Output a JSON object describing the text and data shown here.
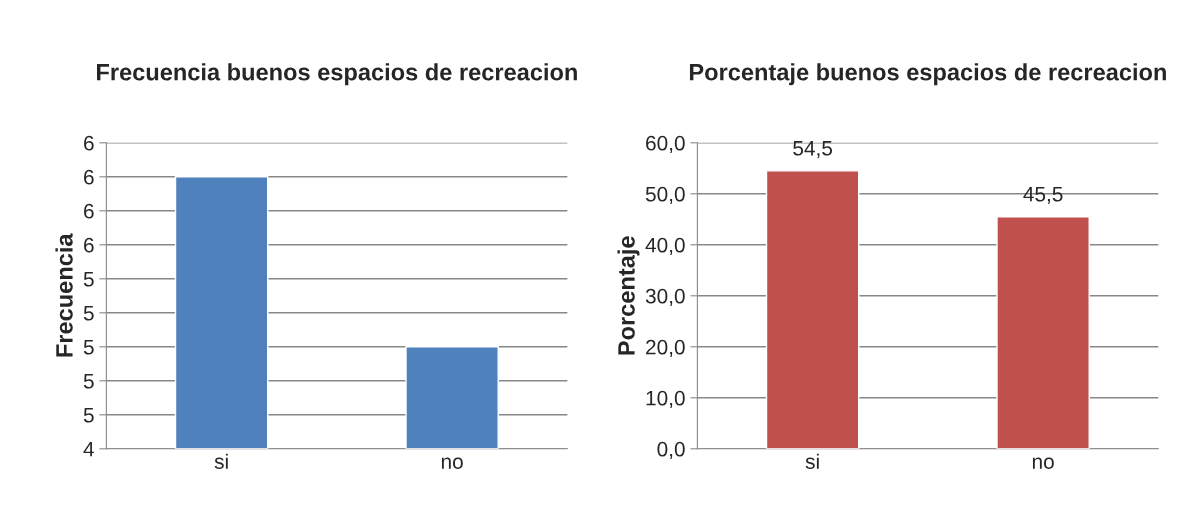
{
  "chart_data": [
    {
      "type": "bar",
      "title": "Frecuencia buenos espacios de recreacion",
      "ylabel": "Frecuencia",
      "categories": [
        "si",
        "no"
      ],
      "values": [
        6,
        5
      ],
      "color": "#4f81bd",
      "ylim": [
        4.4,
        6.2
      ],
      "yticks": [
        {
          "value": 4.4,
          "label": "4"
        },
        {
          "value": 4.6,
          "label": "5"
        },
        {
          "value": 4.8,
          "label": "5"
        },
        {
          "value": 5.0,
          "label": "5"
        },
        {
          "value": 5.2,
          "label": "5"
        },
        {
          "value": 5.4,
          "label": "5"
        },
        {
          "value": 5.6,
          "label": "6"
        },
        {
          "value": 5.8,
          "label": "6"
        },
        {
          "value": 6.0,
          "label": "6"
        },
        {
          "value": 6.2,
          "label": "6"
        }
      ],
      "grid": "y",
      "legend": false
    },
    {
      "type": "bar",
      "title": "Porcentaje buenos espacios de recreacion",
      "ylabel": "Porcentaje",
      "categories": [
        "si",
        "no"
      ],
      "values": [
        54.5,
        45.5
      ],
      "value_labels": [
        "54,5",
        "45,5"
      ],
      "color": "#c0504d",
      "ylim": [
        0,
        60
      ],
      "yticks": [
        {
          "value": 0,
          "label": "0,0"
        },
        {
          "value": 10,
          "label": "10,0"
        },
        {
          "value": 20,
          "label": "20,0"
        },
        {
          "value": 30,
          "label": "30,0"
        },
        {
          "value": 40,
          "label": "40,0"
        },
        {
          "value": 50,
          "label": "50,0"
        },
        {
          "value": 60,
          "label": "60,0"
        }
      ],
      "grid": "y",
      "legend": false
    }
  ]
}
